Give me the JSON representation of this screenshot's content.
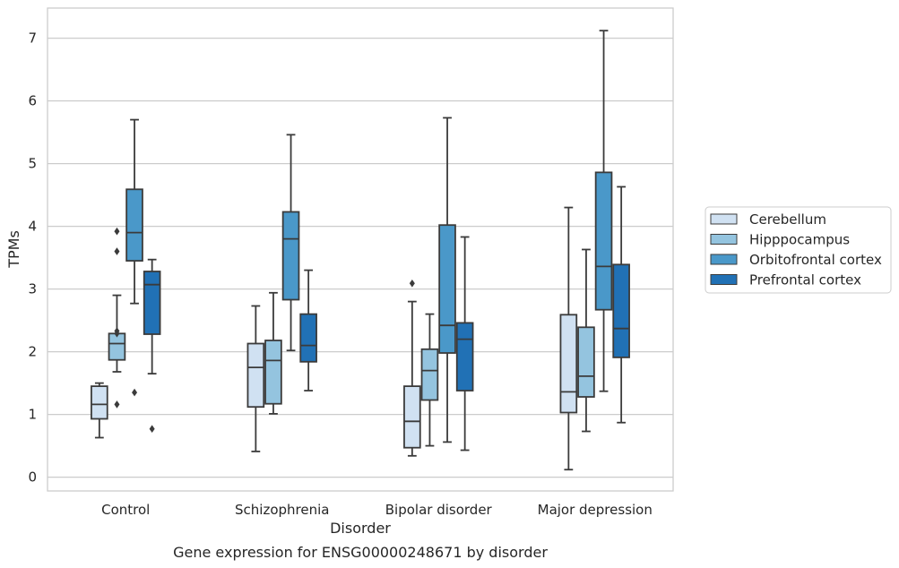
{
  "chart_data": {
    "type": "box",
    "xlabel": "Disorder",
    "ylabel": "TPMs",
    "caption": "Gene expression for ENSG00000248671 by disorder",
    "ylim": [
      -0.22,
      7.48
    ],
    "yticks": [
      0,
      1,
      2,
      3,
      4,
      5,
      6,
      7
    ],
    "grid": "horizontal",
    "legend_position": "right",
    "categories": [
      "Control",
      "Schizophrenia",
      "Bipolar disorder",
      "Major depression"
    ],
    "series": [
      {
        "name": "Cerebellum",
        "color": "#d0e1f2",
        "boxes": [
          {
            "whislo": 0.63,
            "q1": 0.93,
            "med": 1.16,
            "q3": 1.45,
            "whishi": 1.5,
            "fliers": []
          },
          {
            "whislo": 0.41,
            "q1": 1.12,
            "med": 1.75,
            "q3": 2.13,
            "whishi": 2.73,
            "fliers": []
          },
          {
            "whislo": 0.34,
            "q1": 0.47,
            "med": 0.89,
            "q3": 1.45,
            "whishi": 2.8,
            "fliers": [
              3.09
            ]
          },
          {
            "whislo": 0.12,
            "q1": 1.03,
            "med": 1.36,
            "q3": 2.59,
            "whishi": 4.3,
            "fliers": []
          }
        ]
      },
      {
        "name": "Hipppocampus",
        "color": "#94c4df",
        "boxes": [
          {
            "whislo": 1.68,
            "q1": 1.87,
            "med": 2.13,
            "q3": 2.29,
            "whishi": 2.9,
            "fliers": [
              3.6,
              3.92,
              2.33,
              2.29,
              1.16
            ]
          },
          {
            "whislo": 1.01,
            "q1": 1.17,
            "med": 1.86,
            "q3": 2.18,
            "whishi": 2.94,
            "fliers": []
          },
          {
            "whislo": 0.5,
            "q1": 1.23,
            "med": 1.7,
            "q3": 2.04,
            "whishi": 2.6,
            "fliers": []
          },
          {
            "whislo": 0.73,
            "q1": 1.28,
            "med": 1.61,
            "q3": 2.39,
            "whishi": 3.63,
            "fliers": []
          }
        ]
      },
      {
        "name": "Orbitofrontal cortex",
        "color": "#4a98c9",
        "boxes": [
          {
            "whislo": 2.77,
            "q1": 3.45,
            "med": 3.9,
            "q3": 4.59,
            "whishi": 5.7,
            "fliers": [
              1.35
            ]
          },
          {
            "whislo": 2.02,
            "q1": 2.83,
            "med": 3.8,
            "q3": 4.23,
            "whishi": 5.46,
            "fliers": []
          },
          {
            "whislo": 0.56,
            "q1": 1.98,
            "med": 2.42,
            "q3": 4.02,
            "whishi": 5.73,
            "fliers": []
          },
          {
            "whislo": 1.37,
            "q1": 2.67,
            "med": 3.36,
            "q3": 4.86,
            "whishi": 7.12,
            "fliers": []
          }
        ]
      },
      {
        "name": "Prefrontal cortex",
        "color": "#2171b5",
        "boxes": [
          {
            "whislo": 1.65,
            "q1": 2.28,
            "med": 3.07,
            "q3": 3.28,
            "whishi": 3.47,
            "fliers": [
              0.77
            ]
          },
          {
            "whislo": 1.38,
            "q1": 1.84,
            "med": 2.1,
            "q3": 2.6,
            "whishi": 3.3,
            "fliers": []
          },
          {
            "whislo": 0.43,
            "q1": 1.38,
            "med": 2.2,
            "q3": 2.46,
            "whishi": 3.83,
            "fliers": []
          },
          {
            "whislo": 0.87,
            "q1": 1.91,
            "med": 2.37,
            "q3": 3.39,
            "whishi": 4.63,
            "fliers": []
          }
        ]
      }
    ]
  }
}
